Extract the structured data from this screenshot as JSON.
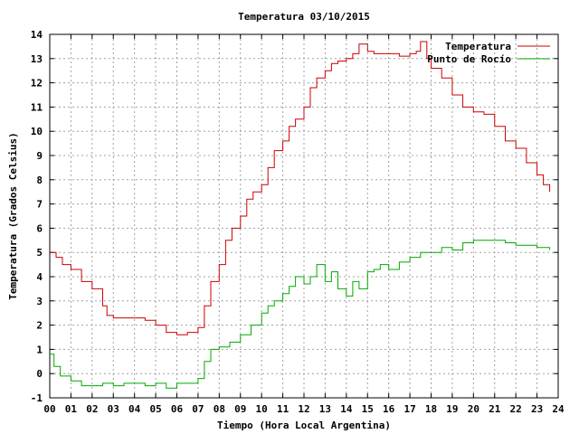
{
  "chart_data": {
    "type": "line",
    "title": "Temperatura 03/10/2015",
    "xlabel": "Tiempo (Hora Local Argentina)",
    "ylabel": "Temperatura (Grados Celsius)",
    "xlim": [
      0,
      24
    ],
    "ylim": [
      -1,
      14
    ],
    "x_ticks": [
      "00",
      "01",
      "02",
      "03",
      "04",
      "05",
      "06",
      "07",
      "08",
      "09",
      "10",
      "11",
      "12",
      "13",
      "14",
      "15",
      "16",
      "17",
      "18",
      "19",
      "20",
      "21",
      "22",
      "23",
      "24"
    ],
    "y_ticks": [
      "-1",
      "0",
      "1",
      "2",
      "3",
      "4",
      "5",
      "6",
      "7",
      "8",
      "9",
      "10",
      "11",
      "12",
      "13",
      "14"
    ],
    "grid": true,
    "legend_position": "top-right",
    "series": [
      {
        "name": "Temperatura",
        "color": "#cc0000",
        "x": [
          0.0,
          0.3,
          0.6,
          1.0,
          1.5,
          2.0,
          2.5,
          2.7,
          3.0,
          3.5,
          4.0,
          4.5,
          5.0,
          5.5,
          6.0,
          6.5,
          7.0,
          7.3,
          7.6,
          8.0,
          8.3,
          8.6,
          9.0,
          9.3,
          9.6,
          10.0,
          10.3,
          10.6,
          11.0,
          11.3,
          11.6,
          12.0,
          12.3,
          12.6,
          13.0,
          13.3,
          13.6,
          14.0,
          14.3,
          14.6,
          15.0,
          15.3,
          15.6,
          16.0,
          16.5,
          17.0,
          17.3,
          17.5,
          17.8,
          18.0,
          18.5,
          19.0,
          19.5,
          20.0,
          20.5,
          21.0,
          21.5,
          22.0,
          22.5,
          23.0,
          23.3,
          23.6
        ],
        "values": [
          5.0,
          4.8,
          4.5,
          4.3,
          3.8,
          3.5,
          2.8,
          2.4,
          2.3,
          2.3,
          2.3,
          2.2,
          2.0,
          1.7,
          1.6,
          1.7,
          1.9,
          2.8,
          3.8,
          4.5,
          5.5,
          6.0,
          6.5,
          7.2,
          7.5,
          7.8,
          8.5,
          9.2,
          9.6,
          10.2,
          10.5,
          11.0,
          11.8,
          12.2,
          12.5,
          12.8,
          12.9,
          13.0,
          13.2,
          13.6,
          13.3,
          13.2,
          13.2,
          13.2,
          13.1,
          13.2,
          13.3,
          13.7,
          13.0,
          12.6,
          12.2,
          11.5,
          11.0,
          10.8,
          10.7,
          10.2,
          9.6,
          9.3,
          8.7,
          8.2,
          7.8,
          7.5
        ]
      },
      {
        "name": "Punto de Rocío",
        "color": "#00aa00",
        "x": [
          0.0,
          0.2,
          0.5,
          1.0,
          1.5,
          2.0,
          2.5,
          3.0,
          3.5,
          4.0,
          4.5,
          5.0,
          5.5,
          6.0,
          6.5,
          7.0,
          7.3,
          7.6,
          8.0,
          8.5,
          9.0,
          9.5,
          10.0,
          10.3,
          10.6,
          11.0,
          11.3,
          11.6,
          12.0,
          12.3,
          12.6,
          13.0,
          13.3,
          13.6,
          14.0,
          14.3,
          14.6,
          15.0,
          15.3,
          15.6,
          16.0,
          16.5,
          17.0,
          17.5,
          18.0,
          18.5,
          19.0,
          19.5,
          20.0,
          20.5,
          21.0,
          21.5,
          22.0,
          22.5,
          23.0,
          23.3,
          23.6
        ],
        "values": [
          0.8,
          0.3,
          -0.1,
          -0.3,
          -0.5,
          -0.5,
          -0.4,
          -0.5,
          -0.4,
          -0.4,
          -0.5,
          -0.4,
          -0.6,
          -0.4,
          -0.4,
          -0.2,
          0.5,
          1.0,
          1.1,
          1.3,
          1.6,
          2.0,
          2.5,
          2.8,
          3.0,
          3.3,
          3.6,
          4.0,
          3.7,
          4.0,
          4.5,
          3.8,
          4.2,
          3.5,
          3.2,
          3.8,
          3.5,
          4.2,
          4.3,
          4.5,
          4.3,
          4.6,
          4.8,
          5.0,
          5.0,
          5.2,
          5.1,
          5.4,
          5.5,
          5.5,
          5.5,
          5.4,
          5.3,
          5.3,
          5.2,
          5.2,
          5.1
        ]
      }
    ]
  }
}
